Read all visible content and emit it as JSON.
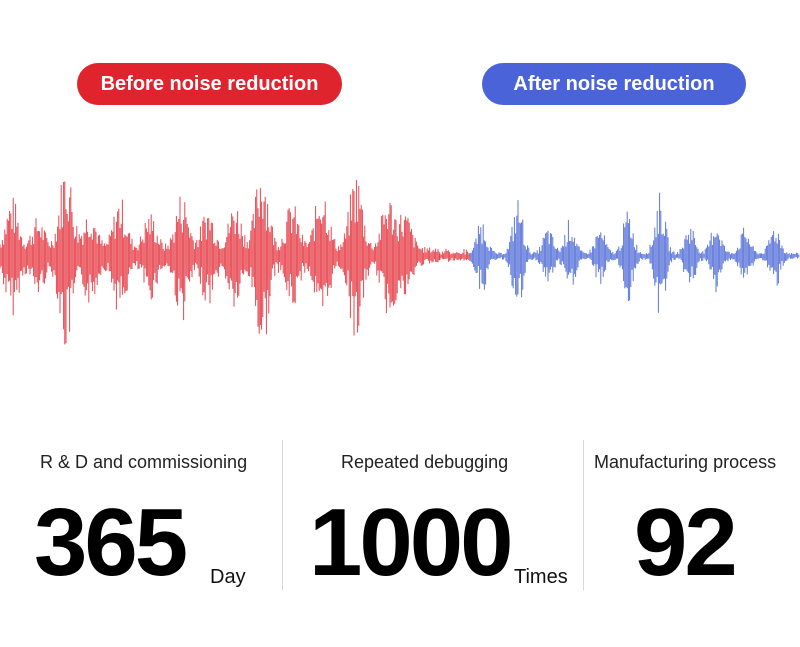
{
  "badges": {
    "before": {
      "label": "Before noise reduction",
      "color": "#e0242e"
    },
    "after": {
      "label": "After noise reduction",
      "color": "#4a63d8"
    }
  },
  "waveform": {
    "before_color": "#e32630",
    "after_color": "#3f5fd4"
  },
  "stats": [
    {
      "label": "R & D and commissioning",
      "value": "365",
      "unit": "Day"
    },
    {
      "label": "Repeated debugging",
      "value": "1000",
      "unit": "Times"
    },
    {
      "label": "Manufacturing process",
      "value": "92",
      "unit": ""
    }
  ]
}
